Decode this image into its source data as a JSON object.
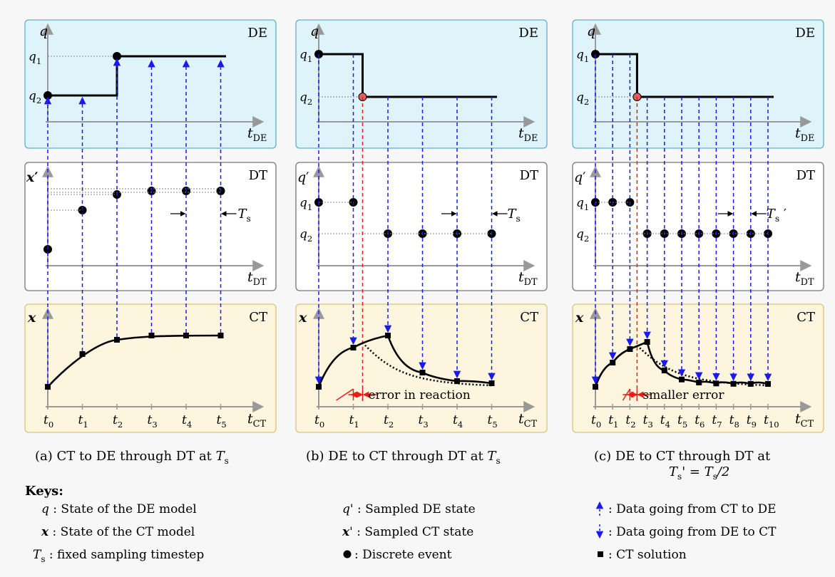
{
  "panels": [
    {
      "id": "a",
      "caption": "(a) CT to DE through DT at T",
      "caption_sub": "s",
      "de": {
        "label": "DE",
        "yaxis": "q",
        "ticks": [
          {
            "t": "q",
            "s": "1"
          },
          {
            "t": "q",
            "s": "2"
          }
        ],
        "xaxis": {
          "t": "t",
          "s": "DE"
        }
      },
      "dt": {
        "label": "DT",
        "yaxis": "x′",
        "ticks": [],
        "period": {
          "t": "T",
          "s": "s",
          "p": ""
        },
        "xaxis": {
          "t": "t",
          "s": "DT"
        }
      },
      "ct": {
        "label": "CT",
        "yaxis": "x",
        "xaxis": {
          "t": "t",
          "s": "CT"
        },
        "tlabels": [
          "0",
          "1",
          "2",
          "3",
          "4",
          "5"
        ]
      }
    },
    {
      "id": "b",
      "caption": "(b) DE to CT through DT at T",
      "caption_sub": "s",
      "de": {
        "label": "DE",
        "yaxis": "q",
        "ticks": [
          {
            "t": "q",
            "s": "1"
          },
          {
            "t": "q",
            "s": "2"
          }
        ],
        "xaxis": {
          "t": "t",
          "s": "DE"
        }
      },
      "dt": {
        "label": "DT",
        "yaxis": "q′",
        "ticks": [
          {
            "t": "q",
            "s": "1"
          },
          {
            "t": "q",
            "s": "2"
          }
        ],
        "period": {
          "t": "T",
          "s": "s",
          "p": ""
        },
        "xaxis": {
          "t": "t",
          "s": "DT"
        }
      },
      "ct": {
        "label": "CT",
        "yaxis": "x",
        "xaxis": {
          "t": "t",
          "s": "CT"
        },
        "tlabels": [
          "0",
          "1",
          "2",
          "3",
          "4",
          "5"
        ],
        "error": "error in reaction"
      }
    },
    {
      "id": "c",
      "caption": "(c) DE to CT through DT at",
      "caption2": "T",
      "caption2_rest": "' = T",
      "caption2_tail": "/2",
      "caption_sub": "s",
      "de": {
        "label": "DE",
        "yaxis": "q",
        "ticks": [
          {
            "t": "q",
            "s": "1"
          },
          {
            "t": "q",
            "s": "2"
          }
        ],
        "xaxis": {
          "t": "t",
          "s": "DE"
        }
      },
      "dt": {
        "label": "DT",
        "yaxis": "q′",
        "ticks": [
          {
            "t": "q",
            "s": "1"
          },
          {
            "t": "q",
            "s": "2"
          }
        ],
        "period": {
          "t": "T",
          "s": "s",
          "p": " ′"
        },
        "xaxis": {
          "t": "t",
          "s": "DT"
        }
      },
      "ct": {
        "label": "CT",
        "yaxis": "x",
        "xaxis": {
          "t": "t",
          "s": "CT"
        },
        "tlabels": [
          "0",
          "1",
          "2",
          "3",
          "4",
          "5",
          "6",
          "7",
          "8",
          "9",
          "10"
        ],
        "error": "smaller error"
      }
    }
  ],
  "keys": {
    "title": "Keys:",
    "items": [
      {
        "sym": "q",
        "sub": "",
        "text": " : State of the DE model"
      },
      {
        "sym": "x",
        "sub": "",
        "text": " : State of the CT model"
      },
      {
        "sym": "T",
        "sub": "s",
        "text": " : fixed sampling timestep"
      },
      {
        "sym": "q",
        "sub": "",
        "prime": "'",
        "text": " : Sampled DE state"
      },
      {
        "sym": "x",
        "sub": "",
        "prime": "'",
        "text": " : Sampled CT state"
      },
      {
        "sym": "",
        "sub": "",
        "text": " : Discrete event"
      },
      {
        "sym": "",
        "sub": "",
        "text": ": Data going from CT to DE"
      },
      {
        "sym": "",
        "sub": "",
        "text": ": Data going from DE to CT"
      },
      {
        "sym": "",
        "sub": "",
        "text": ": CT solution"
      }
    ]
  },
  "colors": {
    "de_fill": "#dff3fa",
    "de_stroke": "#5fb0cf",
    "dt_fill": "#ffffff",
    "dt_stroke": "#777777",
    "ct_fill": "#fdf5de",
    "ct_stroke": "#e0c173",
    "axis": "#999999",
    "blue": "#1a1aee",
    "red": "#ee1a1a"
  }
}
